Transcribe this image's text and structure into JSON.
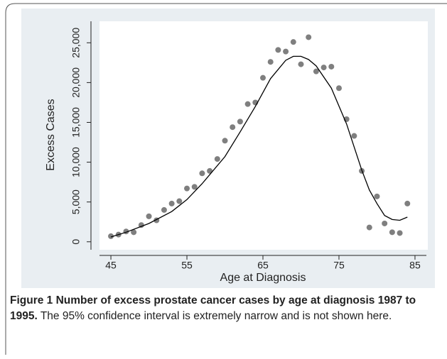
{
  "chart_data": {
    "type": "scatter",
    "x_label": "Age at Diagnosis",
    "y_label": "Excess Cases",
    "x": [
      45,
      46,
      47,
      48,
      49,
      50,
      51,
      52,
      53,
      54,
      55,
      56,
      57,
      58,
      59,
      60,
      61,
      62,
      63,
      64,
      65,
      66,
      67,
      68,
      69,
      70,
      71,
      72,
      73,
      74,
      75,
      76,
      77,
      78,
      79,
      80,
      81,
      82,
      83,
      84
    ],
    "values": [
      700,
      900,
      1300,
      1200,
      2100,
      3200,
      2700,
      4000,
      4800,
      5100,
      6700,
      6900,
      8600,
      8900,
      10400,
      12700,
      14400,
      15100,
      17300,
      17500,
      20600,
      22600,
      24100,
      23900,
      25100,
      22300,
      25700,
      21400,
      21900,
      22000,
      19300,
      15400,
      13300,
      8900,
      1800,
      5700,
      2300,
      1200,
      1100,
      4800
    ],
    "color": "#7f7f7f",
    "fit_x": [
      45,
      47,
      50,
      53,
      55,
      57,
      60,
      62,
      64,
      66,
      68,
      69,
      70,
      71,
      72,
      74,
      76,
      78,
      79,
      80,
      81,
      82,
      83,
      84
    ],
    "fit_values": [
      600,
      1200,
      2300,
      3800,
      5300,
      7300,
      10700,
      13800,
      17000,
      20500,
      22800,
      23300,
      23300,
      22900,
      22100,
      19300,
      14800,
      9000,
      6500,
      4800,
      3300,
      2800,
      2700,
      3100
    ],
    "fit_color": "#000000",
    "xlim": [
      43.5,
      86.5
    ],
    "xticks": [
      45,
      55,
      65,
      75,
      85
    ],
    "ylim": [
      -1000,
      27700
    ],
    "yticks": [
      0,
      {
        "value": 5000,
        "label": "5,000"
      },
      {
        "value": 10000,
        "label": "10,000"
      },
      {
        "value": 15000,
        "label": "15,000"
      },
      {
        "value": 20000,
        "label": "20,000"
      },
      {
        "value": 25000,
        "label": "25,000"
      }
    ]
  },
  "caption": {
    "bold": "Figure 1 Number of excess prostate cancer cases by age at diagnosis 1987 to 1995.",
    "text": " The 95% confidence interval is extremely narrow and is not shown here."
  }
}
